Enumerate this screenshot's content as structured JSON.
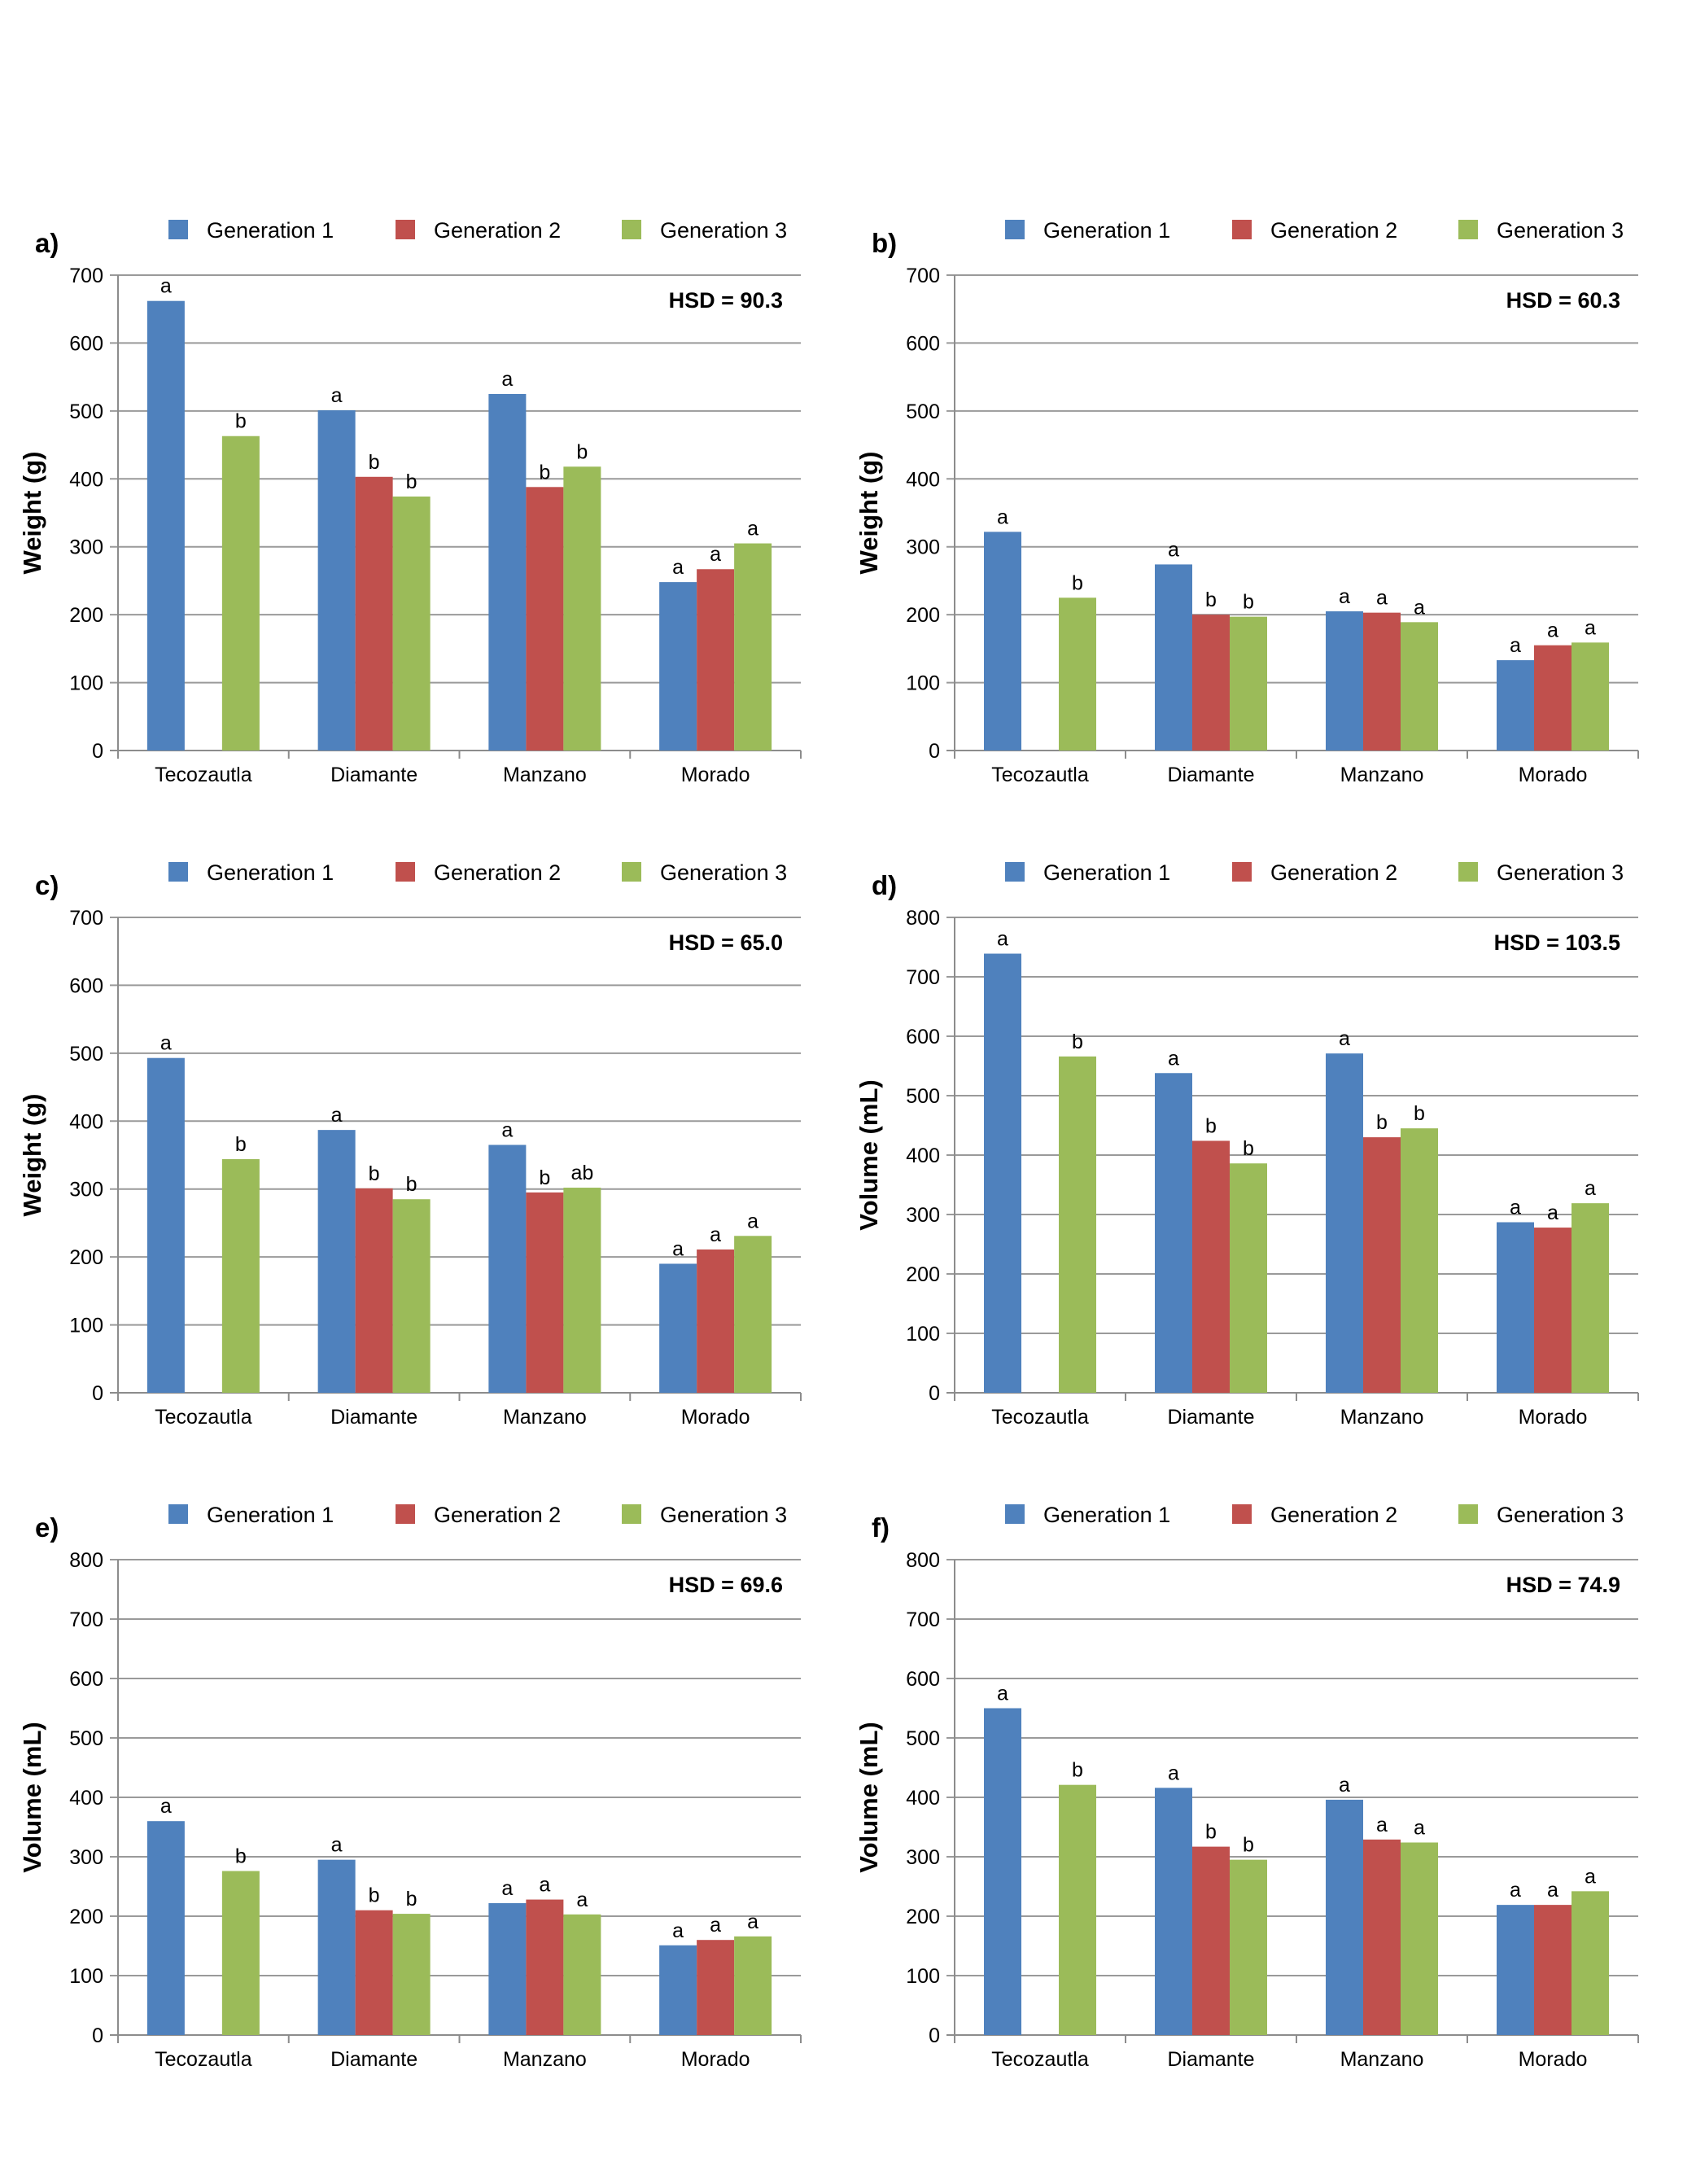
{
  "figure": {
    "legend": [
      {
        "name": "Generation 1",
        "color": "#4F81BD"
      },
      {
        "name": "Generation 2",
        "color": "#C0504D"
      },
      {
        "name": "Generation 3",
        "color": "#9BBB59"
      }
    ]
  },
  "chart_data": [
    {
      "type": "bar",
      "panel": "a)",
      "hsd": "HSD = 90.3",
      "ylabel": "Weight (g)",
      "xlabel": "",
      "ylim": [
        0,
        700
      ],
      "yticks": [
        0,
        100,
        200,
        300,
        400,
        500,
        600,
        700
      ],
      "grid": true,
      "legend_position": "top",
      "categories": [
        "Tecozautla",
        "Diamante",
        "Manzano",
        "Morado"
      ],
      "series": [
        {
          "name": "Generation 1",
          "values": [
            662,
            501,
            525,
            248
          ],
          "letters": [
            "a",
            "a",
            "a",
            "a"
          ]
        },
        {
          "name": "Generation 2",
          "values": [
            null,
            403,
            388,
            267
          ],
          "letters": [
            null,
            "b",
            "b",
            "a"
          ]
        },
        {
          "name": "Generation 3",
          "values": [
            463,
            374,
            418,
            305
          ],
          "letters": [
            "b",
            "b",
            "b",
            "a"
          ]
        }
      ]
    },
    {
      "type": "bar",
      "panel": "b)",
      "hsd": "HSD = 60.3",
      "ylabel": "Weight (g)",
      "xlabel": "",
      "ylim": [
        0,
        700
      ],
      "yticks": [
        0,
        100,
        200,
        300,
        400,
        500,
        600,
        700
      ],
      "grid": true,
      "legend_position": "top",
      "categories": [
        "Tecozautla",
        "Diamante",
        "Manzano",
        "Morado"
      ],
      "series": [
        {
          "name": "Generation 1",
          "values": [
            322,
            274,
            205,
            133
          ],
          "letters": [
            "a",
            "a",
            "a",
            "a"
          ]
        },
        {
          "name": "Generation 2",
          "values": [
            null,
            200,
            203,
            155
          ],
          "letters": [
            null,
            "b",
            "a",
            "a"
          ]
        },
        {
          "name": "Generation 3",
          "values": [
            225,
            197,
            189,
            159
          ],
          "letters": [
            "b",
            "b",
            "a",
            "a"
          ]
        }
      ]
    },
    {
      "type": "bar",
      "panel": "c)",
      "hsd": "HSD = 65.0",
      "ylabel": "Weight (g)",
      "xlabel": "",
      "ylim": [
        0,
        700
      ],
      "yticks": [
        0,
        100,
        200,
        300,
        400,
        500,
        600,
        700
      ],
      "grid": true,
      "legend_position": "top",
      "categories": [
        "Tecozautla",
        "Diamante",
        "Manzano",
        "Morado"
      ],
      "series": [
        {
          "name": "Generation 1",
          "values": [
            493,
            387,
            365,
            190
          ],
          "letters": [
            "a",
            "a",
            "a",
            "a"
          ]
        },
        {
          "name": "Generation 2",
          "values": [
            null,
            301,
            295,
            211
          ],
          "letters": [
            null,
            "b",
            "b",
            "a"
          ]
        },
        {
          "name": "Generation 3",
          "values": [
            344,
            285,
            302,
            231
          ],
          "letters": [
            "b",
            "b",
            "ab",
            "a"
          ]
        }
      ]
    },
    {
      "type": "bar",
      "panel": "d)",
      "hsd": "HSD = 103.5",
      "ylabel": "Volume (mL)",
      "xlabel": "",
      "ylim": [
        0,
        800
      ],
      "yticks": [
        0,
        100,
        200,
        300,
        400,
        500,
        600,
        700,
        800
      ],
      "grid": true,
      "legend_position": "top",
      "categories": [
        "Tecozautla",
        "Diamante",
        "Manzano",
        "Morado"
      ],
      "series": [
        {
          "name": "Generation 1",
          "values": [
            739,
            538,
            571,
            287
          ],
          "letters": [
            "a",
            "a",
            "a",
            "a"
          ]
        },
        {
          "name": "Generation 2",
          "values": [
            null,
            424,
            430,
            278
          ],
          "letters": [
            null,
            "b",
            "b",
            "a"
          ]
        },
        {
          "name": "Generation 3",
          "values": [
            566,
            386,
            445,
            319
          ],
          "letters": [
            "b",
            "b",
            "b",
            "a"
          ]
        }
      ]
    },
    {
      "type": "bar",
      "panel": "e)",
      "hsd": "HSD = 69.6",
      "ylabel": "Volume (mL)",
      "xlabel": "",
      "ylim": [
        0,
        800
      ],
      "yticks": [
        0,
        100,
        200,
        300,
        400,
        500,
        600,
        700,
        800
      ],
      "grid": true,
      "legend_position": "top",
      "categories": [
        "Tecozautla",
        "Diamante",
        "Manzano",
        "Morado"
      ],
      "series": [
        {
          "name": "Generation 1",
          "values": [
            360,
            295,
            222,
            151
          ],
          "letters": [
            "a",
            "a",
            "a",
            "a"
          ]
        },
        {
          "name": "Generation 2",
          "values": [
            null,
            210,
            228,
            160
          ],
          "letters": [
            null,
            "b",
            "a",
            "a"
          ]
        },
        {
          "name": "Generation 3",
          "values": [
            276,
            204,
            203,
            166
          ],
          "letters": [
            "b",
            "b",
            "a",
            "a"
          ]
        }
      ]
    },
    {
      "type": "bar",
      "panel": "f)",
      "hsd": "HSD = 74.9",
      "ylabel": "Volume (mL)",
      "xlabel": "",
      "ylim": [
        0,
        800
      ],
      "yticks": [
        0,
        100,
        200,
        300,
        400,
        500,
        600,
        700,
        800
      ],
      "grid": true,
      "legend_position": "top",
      "categories": [
        "Tecozautla",
        "Diamante",
        "Manzano",
        "Morado"
      ],
      "series": [
        {
          "name": "Generation 1",
          "values": [
            550,
            416,
            396,
            219
          ],
          "letters": [
            "a",
            "a",
            "a",
            "a"
          ]
        },
        {
          "name": "Generation 2",
          "values": [
            null,
            317,
            329,
            219
          ],
          "letters": [
            null,
            "b",
            "a",
            "a"
          ]
        },
        {
          "name": "Generation 3",
          "values": [
            421,
            295,
            324,
            242
          ],
          "letters": [
            "b",
            "b",
            "a",
            "a"
          ]
        }
      ]
    }
  ]
}
